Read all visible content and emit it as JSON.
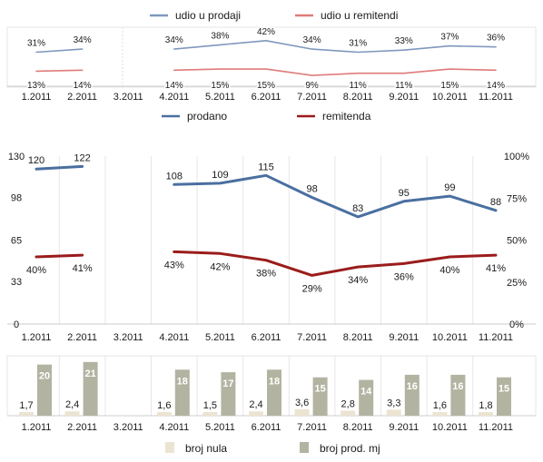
{
  "chart_data": [
    {
      "type": "line",
      "categories": [
        "1.2011",
        "2.2011",
        "3.2011",
        "4.2011",
        "5.2011",
        "6.2011",
        "7.2011",
        "8.2011",
        "9.2011",
        "10.2011",
        "11.2011"
      ],
      "series": [
        {
          "name": "udio u prodaji",
          "color": "#7f98bd",
          "values": [
            31,
            34,
            null,
            34,
            38,
            42,
            34,
            31,
            33,
            37,
            36
          ],
          "labels": [
            "31%",
            "34%",
            "",
            "34%",
            "38%",
            "42%",
            "34%",
            "31%",
            "33%",
            "37%",
            "36%"
          ]
        },
        {
          "name": "udio u remitendi",
          "color": "#e07b7b",
          "values": [
            13,
            14,
            null,
            14,
            15,
            15,
            9,
            11,
            11,
            15,
            14
          ],
          "labels": [
            "13%",
            "14%",
            "",
            "14%",
            "15%",
            "15%",
            "9%",
            "11%",
            "11%",
            "15%",
            "14%"
          ]
        }
      ],
      "legend": "top",
      "grid": false
    },
    {
      "type": "line",
      "categories": [
        "1.2011",
        "2.2011",
        "3.2011",
        "4.2011",
        "5.2011",
        "6.2011",
        "7.2011",
        "8.2011",
        "9.2011",
        "10.2011",
        "11.2011"
      ],
      "y_ticks_left": [
        "0",
        "33",
        "65",
        "98",
        "130"
      ],
      "y_ticks_right": [
        "0%",
        "25%",
        "50%",
        "75%",
        "100%"
      ],
      "ylim_left": [
        0,
        130
      ],
      "ylim_right": [
        0,
        100
      ],
      "series": [
        {
          "name": "prodano",
          "color": "#4a6fa0",
          "axis": "left",
          "values": [
            120,
            122,
            null,
            108,
            109,
            115,
            98,
            83,
            95,
            99,
            88
          ],
          "labels": [
            "120",
            "122",
            "",
            "108",
            "109",
            "115",
            "98",
            "83",
            "95",
            "99",
            "88"
          ]
        },
        {
          "name": "remitenda",
          "color": "#9b1c1c",
          "axis": "right",
          "values": [
            40,
            41,
            null,
            43,
            42,
            38,
            29,
            34,
            36,
            40,
            41
          ],
          "labels": [
            "40%",
            "41%",
            "",
            "43%",
            "42%",
            "38%",
            "29%",
            "34%",
            "36%",
            "40%",
            "41%"
          ]
        }
      ],
      "legend": "top",
      "grid": "vertical"
    },
    {
      "type": "bar",
      "categories": [
        "1.2011",
        "2.2011",
        "3.2011",
        "4.2011",
        "5.2011",
        "6.2011",
        "7.2011",
        "8.2011",
        "9.2011",
        "10.2011",
        "11.2011"
      ],
      "series": [
        {
          "name": "broj nula",
          "color": "#ece4d2",
          "values": [
            1.7,
            2.4,
            null,
            1.6,
            1.5,
            2.4,
            3.6,
            2.8,
            3.3,
            1.6,
            1.8
          ],
          "labels": [
            "1,7",
            "2,4",
            "",
            "1,6",
            "1,5",
            "2,4",
            "3,6",
            "2,8",
            "3,3",
            "1,6",
            "1,8"
          ]
        },
        {
          "name": "broj prod. mj",
          "color": "#b3b3a1",
          "values": [
            20,
            21,
            null,
            18,
            17,
            18,
            15,
            14,
            16,
            16,
            15
          ],
          "labels": [
            "20",
            "21",
            "",
            "18",
            "17",
            "18",
            "15",
            "14",
            "16",
            "16",
            "15"
          ]
        }
      ],
      "ylim": [
        0,
        22
      ],
      "legend": "bottom",
      "grid": "vertical"
    }
  ]
}
